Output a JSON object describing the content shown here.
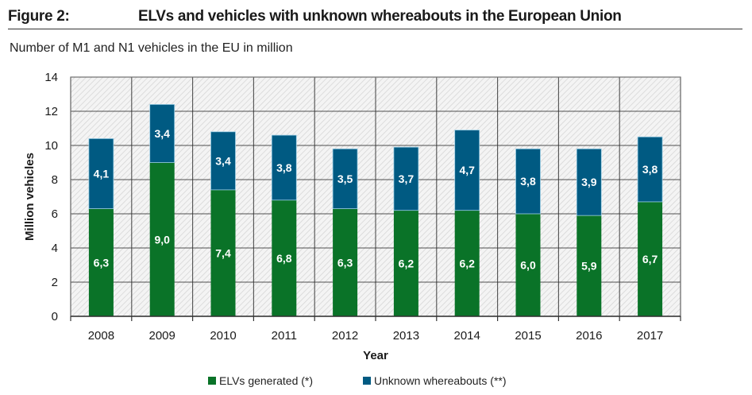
{
  "figure": {
    "label": "Figure 2:",
    "title": "ELVs and vehicles with unknown whereabouts in the European Union",
    "subtitle": "Number of M1 and N1 vehicles in the EU in million"
  },
  "colors": {
    "elv": "#0a7328",
    "unknown": "#005a82",
    "bar_border": "#9fd0e6",
    "grid": "#333333",
    "plot_bg": "#f4f4f4",
    "hatch": "#d6d6d6"
  },
  "chart_data": {
    "type": "bar",
    "stacked": true,
    "title": "ELVs and vehicles with unknown whereabouts in the European Union",
    "subtitle": "Number of M1 and N1 vehicles in the EU in million",
    "xlabel": "Year",
    "ylabel": "Million vehicles",
    "ylim": [
      0,
      14
    ],
    "yticks": [
      0,
      2,
      4,
      6,
      8,
      10,
      12,
      14
    ],
    "grid": true,
    "legend_position": "bottom-center",
    "categories": [
      "2008",
      "2009",
      "2010",
      "2011",
      "2012",
      "2013",
      "2014",
      "2015",
      "2016",
      "2017"
    ],
    "series": [
      {
        "name": "ELVs generated (*)",
        "color": "#0a7328",
        "values": [
          6.3,
          9.0,
          7.4,
          6.8,
          6.3,
          6.2,
          6.2,
          6.0,
          5.9,
          6.7
        ],
        "labels": [
          "6,3",
          "9,0",
          "7,4",
          "6,8",
          "6,3",
          "6,2",
          "6,2",
          "6,0",
          "5,9",
          "6,7"
        ]
      },
      {
        "name": "Unknown whereabouts (**)",
        "color": "#005a82",
        "values": [
          4.1,
          3.4,
          3.4,
          3.8,
          3.5,
          3.7,
          4.7,
          3.8,
          3.9,
          3.8
        ],
        "labels": [
          "4,1",
          "3,4",
          "3,4",
          "3,8",
          "3,5",
          "3,7",
          "4,7",
          "3,8",
          "3,9",
          "3,8"
        ]
      }
    ]
  }
}
